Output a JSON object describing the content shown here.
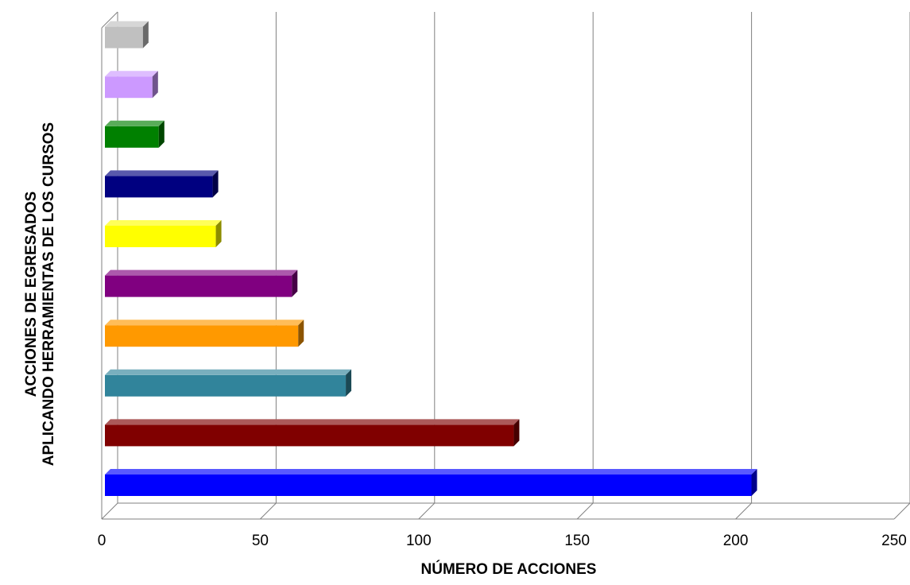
{
  "chart_data": {
    "type": "bar",
    "orientation": "horizontal",
    "style": "3d",
    "title": "",
    "xlabel": "NÚMERO DE ACCIONES",
    "ylabel_lines": [
      "ACCIONES DE EGRESADOS",
      "APLICANDO HERRAMIENTAS DE LOS CURSOS"
    ],
    "xlim": [
      0,
      250
    ],
    "x_ticks": [
      "0",
      "50",
      "100",
      "150",
      "200",
      "250"
    ],
    "grid": "vertical",
    "legend": "none",
    "values": [
      205,
      130,
      77,
      62,
      60,
      36,
      35,
      18,
      16,
      13
    ],
    "colors": [
      "#0000ff",
      "#800000",
      "#31849b",
      "#ff9900",
      "#800080",
      "#ffff00",
      "#000080",
      "#008000",
      "#cc99ff",
      "#c0c0c0"
    ]
  }
}
